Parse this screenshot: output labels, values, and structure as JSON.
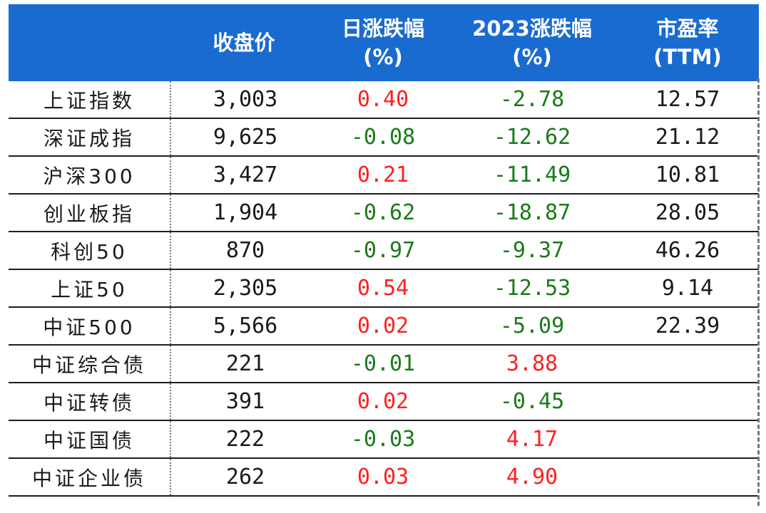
{
  "header": {
    "col1": "收盘价",
    "col2_line1": "日涨跌幅",
    "col2_line2": "(%)",
    "col3_line1": "2023涨跌幅",
    "col3_line2": "(%)",
    "col4_line1": "市盈率",
    "col4_line2": "(TTM)"
  },
  "colors": {
    "header_bg": "#1a6bd0",
    "up": "#ff2020",
    "down": "#1a7a1a"
  },
  "rows": [
    {
      "name": "上证指数",
      "close": "3,003",
      "day": "0.40",
      "day_sign": "pos",
      "ytd": "-2.78",
      "ytd_sign": "neg",
      "pe": "12.57"
    },
    {
      "name": "深证成指",
      "close": "9,625",
      "day": "-0.08",
      "day_sign": "neg",
      "ytd": "-12.62",
      "ytd_sign": "neg",
      "pe": "21.12"
    },
    {
      "name": "沪深300",
      "close": "3,427",
      "day": "0.21",
      "day_sign": "pos",
      "ytd": "-11.49",
      "ytd_sign": "neg",
      "pe": "10.81"
    },
    {
      "name": "创业板指",
      "close": "1,904",
      "day": "-0.62",
      "day_sign": "neg",
      "ytd": "-18.87",
      "ytd_sign": "neg",
      "pe": "28.05"
    },
    {
      "name": "科创50",
      "close": "870",
      "day": "-0.97",
      "day_sign": "neg",
      "ytd": "-9.37",
      "ytd_sign": "neg",
      "pe": "46.26"
    },
    {
      "name": "上证50",
      "close": "2,305",
      "day": "0.54",
      "day_sign": "pos",
      "ytd": "-12.53",
      "ytd_sign": "neg",
      "pe": "9.14"
    },
    {
      "name": "中证500",
      "close": "5,566",
      "day": "0.02",
      "day_sign": "pos",
      "ytd": "-5.09",
      "ytd_sign": "neg",
      "pe": "22.39"
    },
    {
      "name": "中证综合债",
      "close": "221",
      "day": "-0.01",
      "day_sign": "neg",
      "ytd": "3.88",
      "ytd_sign": "pos",
      "pe": ""
    },
    {
      "name": "中证转债",
      "close": "391",
      "day": "0.02",
      "day_sign": "pos",
      "ytd": "-0.45",
      "ytd_sign": "neg",
      "pe": ""
    },
    {
      "name": "中证国债",
      "close": "222",
      "day": "-0.03",
      "day_sign": "neg",
      "ytd": "4.17",
      "ytd_sign": "pos",
      "pe": ""
    },
    {
      "name": "中证企业债",
      "close": "262",
      "day": "0.03",
      "day_sign": "pos",
      "ytd": "4.90",
      "ytd_sign": "pos",
      "pe": ""
    }
  ]
}
